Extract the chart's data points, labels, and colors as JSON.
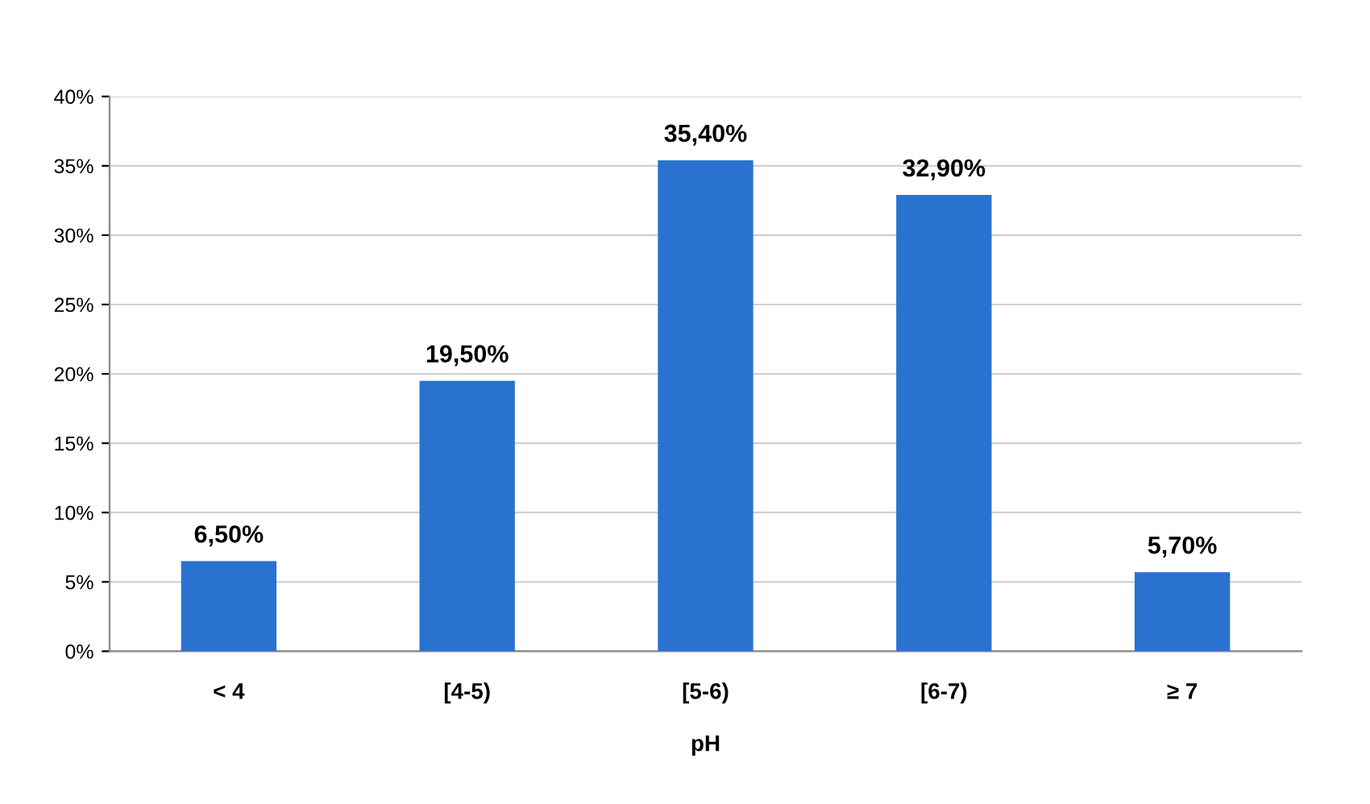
{
  "chart_data": {
    "type": "bar",
    "xlabel": "pH",
    "categories": [
      "< 4",
      "[4-5)",
      "[5-6)",
      "[6-7)",
      "≥ 7"
    ],
    "values": [
      6.5,
      19.5,
      35.4,
      32.9,
      5.7
    ],
    "value_labels": [
      "6,50%",
      "19,50%",
      "35,40%",
      "32,90%",
      "5,70%"
    ],
    "color": "#2a72d0",
    "ylim": [
      0,
      40
    ],
    "yticks": [
      {
        "value": 0,
        "label": "0%"
      },
      {
        "value": 5,
        "label": "5%"
      },
      {
        "value": 10,
        "label": "10%"
      },
      {
        "value": 15,
        "label": "15%"
      },
      {
        "value": 20,
        "label": "20%"
      },
      {
        "value": 25,
        "label": "25%"
      },
      {
        "value": 30,
        "label": "30%"
      },
      {
        "value": 35,
        "label": "35%"
      },
      {
        "value": 40,
        "label": "40%"
      }
    ],
    "grid": "y"
  }
}
